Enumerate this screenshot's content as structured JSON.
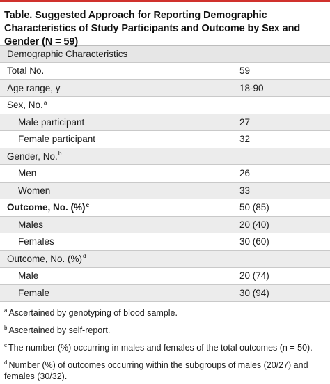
{
  "title": "Table. Suggested Approach for Reporting Demographic Characteristics of Study Participants and Outcome by Sex and Gender (N = 59)",
  "table": {
    "header": "Demographic Characteristics",
    "rows": [
      {
        "label": "Total No.",
        "value": "59"
      },
      {
        "label": "Age range, y",
        "value": "18-90"
      },
      {
        "label": "Sex, No.",
        "sup": "a",
        "value": ""
      },
      {
        "label": "Male participant",
        "value": "27"
      },
      {
        "label": "Female participant",
        "value": "32"
      },
      {
        "label": "Gender, No.",
        "sup": "b",
        "value": ""
      },
      {
        "label": "Men",
        "value": "26"
      },
      {
        "label": "Women",
        "value": "33"
      },
      {
        "label": "Outcome, No. (%)",
        "sup": "c",
        "value": "50 (85)"
      },
      {
        "label": "Males",
        "value": "20 (40)"
      },
      {
        "label": "Females",
        "value": "30 (60)"
      },
      {
        "label": "Outcome, No. (%)",
        "sup": "d",
        "value": ""
      },
      {
        "label": "Male",
        "value": "20 (74)"
      },
      {
        "label": "Female",
        "value": "30 (94)"
      }
    ]
  },
  "footnotes": [
    {
      "mark": "a",
      "text": "Ascertained by genotyping of blood sample."
    },
    {
      "mark": "b",
      "text": "Ascertained by self-report."
    },
    {
      "mark": "c",
      "text": "The number (%) occurring in males and females of the total outcomes (n = 50)."
    },
    {
      "mark": "d",
      "text": "Number (%) of outcomes occurring within the subgroups of males (20/27) and females (30/32)."
    }
  ],
  "colors": {
    "accent_rule": "#d0312d",
    "header_bg": "#e6e6e6",
    "shade_bg": "#ececec"
  }
}
